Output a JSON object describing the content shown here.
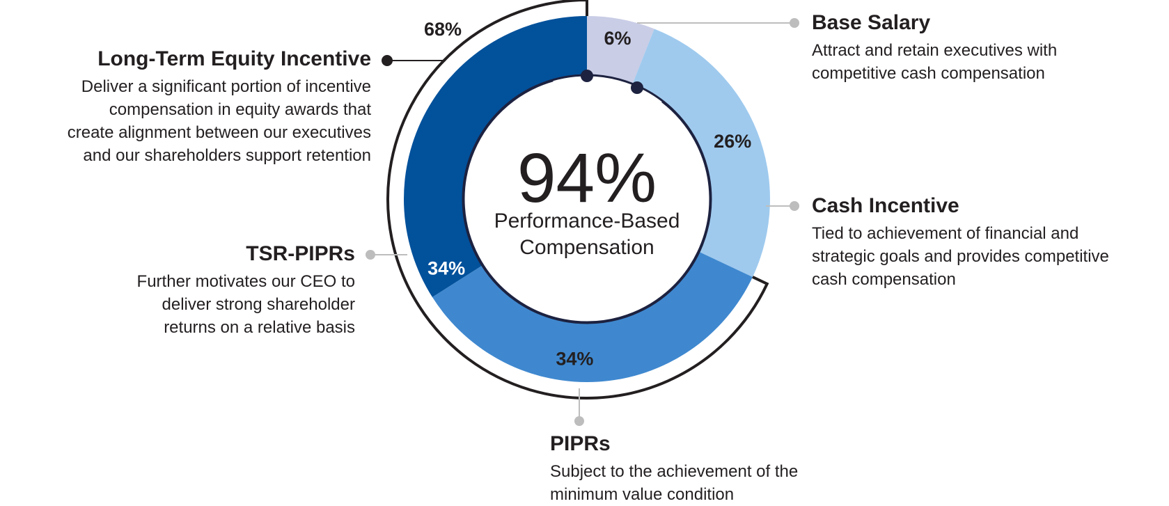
{
  "chart_data": {
    "type": "pie",
    "title": "",
    "center": {
      "value": "94%",
      "label_line1": "Performance-Based",
      "label_line2": "Compensation"
    },
    "slices": [
      {
        "name": "Base Salary",
        "value": 6,
        "label": "6%",
        "color": "#c9cde6",
        "description": "Attract and retain executives with competitive cash compensation"
      },
      {
        "name": "Cash Incentive",
        "value": 26,
        "label": "26%",
        "color": "#9fcaee",
        "description": "Tied to achievement of financial and strategic goals and provides competitive cash compensation"
      },
      {
        "name": "PIPRs",
        "value": 34,
        "label": "34%",
        "color": "#3f88cf",
        "description": "Subject to the achievement of the minimum value condition"
      },
      {
        "name": "TSR-PIPRs",
        "value": 34,
        "label": "34%",
        "color": "#02519b",
        "description": "Further motivates our CEO to deliver strong shareholder returns on a relative basis"
      }
    ],
    "group": {
      "name": "Long-Term Equity Incentive",
      "value": 68,
      "label": "68%",
      "description": "Deliver a significant portion of incentive compensation in equity awards that create alignment between our executives and our shareholders support retention"
    },
    "performance_based_share": 94
  },
  "labels": {
    "base_salary": {
      "title": "Base Salary",
      "desc_lines": [
        "Attract and retain executives with",
        "competitive cash compensation"
      ]
    },
    "cash_incentive": {
      "title": "Cash Incentive",
      "desc_lines": [
        "Tied to achievement of financial and",
        "strategic goals and provides competitive",
        "cash compensation"
      ]
    },
    "pipr": {
      "title": "PIPRs",
      "desc_lines": [
        "Subject to the achievement of the",
        "minimum value condition"
      ]
    },
    "tsr": {
      "title": "TSR-PIPRs",
      "desc_lines": [
        "Further motivates our CEO to",
        "deliver strong shareholder",
        "returns on a relative basis"
      ]
    },
    "ltei": {
      "title": "Long-Term Equity Incentive",
      "desc_lines": [
        "Deliver a significant portion of incentive",
        "compensation in equity awards that",
        "create alignment between our executives",
        "and our shareholders support retention"
      ]
    }
  },
  "colors": {
    "text": "#231f20",
    "leader_light": "#bdbdbd",
    "leader_dark": "#231f20",
    "arc_inner": "#1d2240"
  }
}
